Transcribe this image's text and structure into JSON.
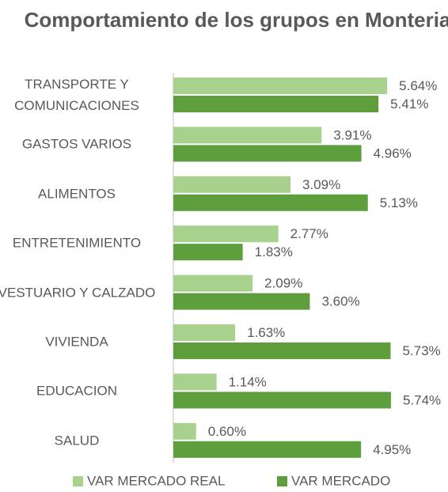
{
  "chart_data": {
    "type": "bar",
    "orientation": "horizontal",
    "title": "Comportamiento de los grupos en Monteria",
    "categories": [
      "TRANSPORTE Y COMUNICACIONES",
      "GASTOS VARIOS",
      "ALIMENTOS",
      "ENTRETENIMIENTO",
      "VESTUARIO Y CALZADO",
      "VIVIENDA",
      "EDUCACION",
      "SALUD"
    ],
    "series": [
      {
        "name": "VAR MERCADO REAL",
        "color": "#a9d18e",
        "values": [
          5.64,
          3.91,
          3.09,
          2.77,
          2.09,
          1.63,
          1.14,
          0.6
        ],
        "value_labels": [
          "5.64%",
          "3.91%",
          "3.09%",
          "2.77%",
          "2.09%",
          "1.63%",
          "1.14%",
          "0.60%"
        ]
      },
      {
        "name": "VAR MERCADO",
        "color": "#5f9e3d",
        "values": [
          5.41,
          4.96,
          5.13,
          1.83,
          3.6,
          5.73,
          5.74,
          4.95
        ],
        "value_labels": [
          "5.41%",
          "4.96%",
          "5.13%",
          "1.83%",
          "3.60%",
          "5.73%",
          "5.74%",
          "4.95%"
        ]
      }
    ],
    "legend": "bottom"
  }
}
